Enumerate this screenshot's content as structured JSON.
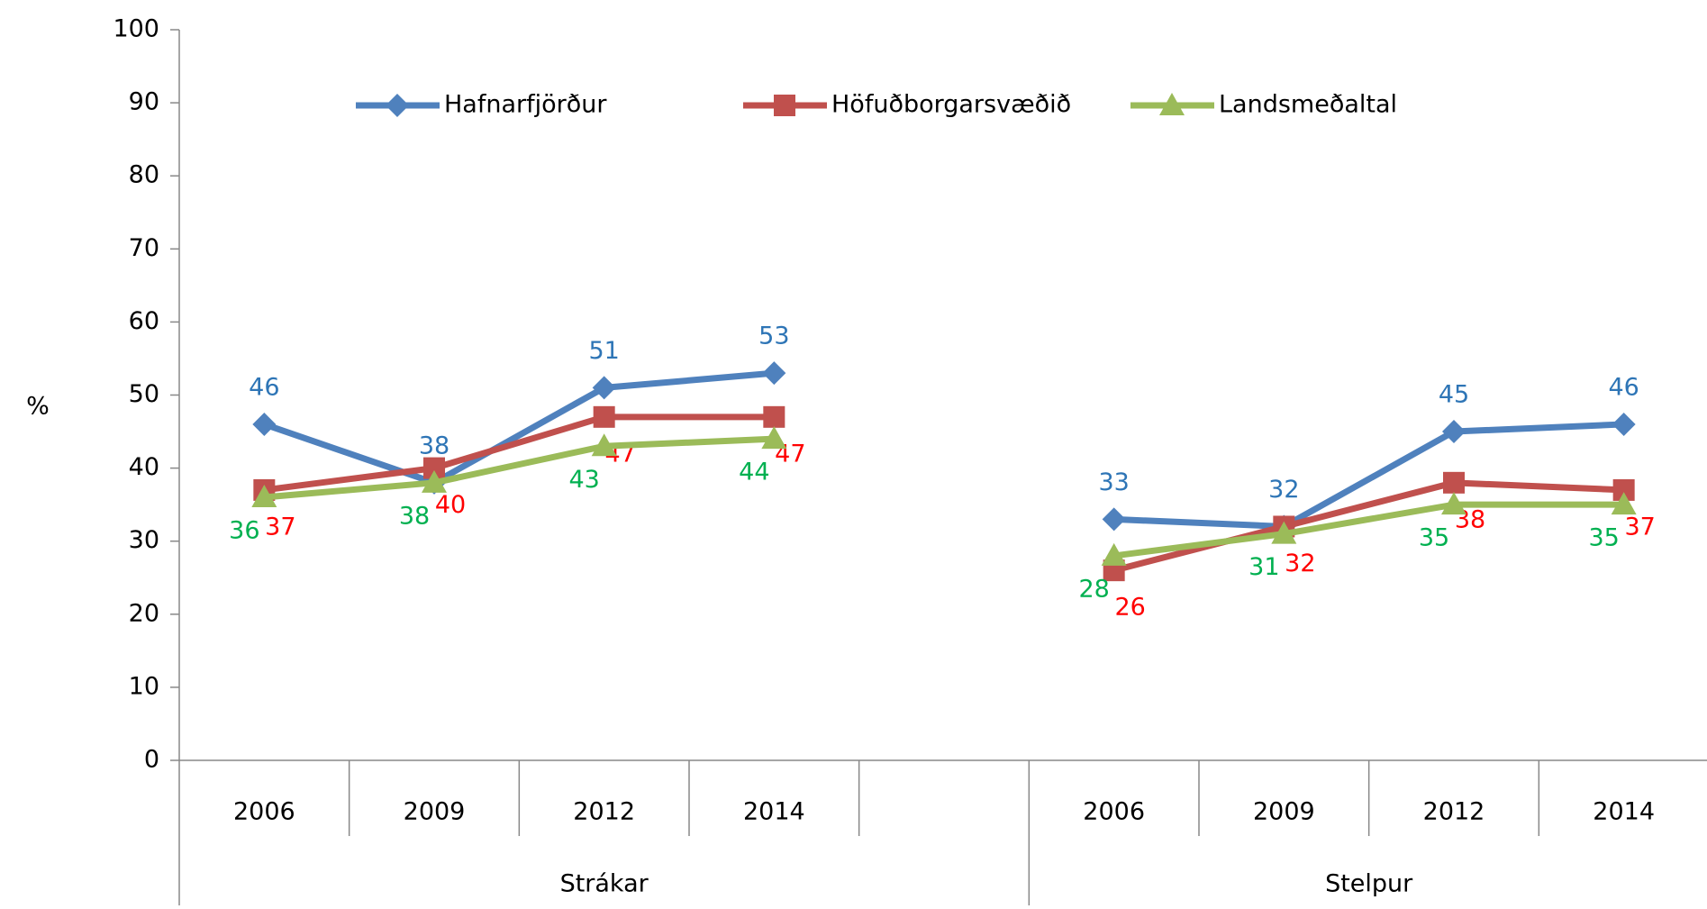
{
  "chart_data": {
    "type": "line",
    "y_label": "%",
    "categories": [
      "2006",
      "2009",
      "2012",
      "2014",
      null,
      "2006",
      "2009",
      "2012",
      "2014"
    ],
    "groups": [
      "Strákar",
      "Stelpur"
    ],
    "series": [
      {
        "name": "Hafnarfjörður",
        "color": "#4f81bd",
        "label_color": "#2e75b6",
        "marker": "diamond",
        "values": [
          46,
          38,
          51,
          53,
          null,
          33,
          32,
          45,
          46
        ]
      },
      {
        "name": "Höfuðborgarsvæðið",
        "color": "#c0504d",
        "label_color": "#ff0000",
        "marker": "square",
        "values": [
          37,
          40,
          47,
          47,
          null,
          26,
          32,
          38,
          37
        ]
      },
      {
        "name": "Landsmeðaltal",
        "color": "#9bbb59",
        "label_color": "#00b050",
        "marker": "triangle",
        "values": [
          36,
          38,
          43,
          44,
          null,
          28,
          31,
          35,
          35
        ]
      }
    ],
    "ylim": [
      0,
      100
    ],
    "yticks": [
      0,
      10,
      20,
      30,
      40,
      50,
      60,
      70,
      80,
      90,
      100
    ],
    "legend": "top"
  }
}
